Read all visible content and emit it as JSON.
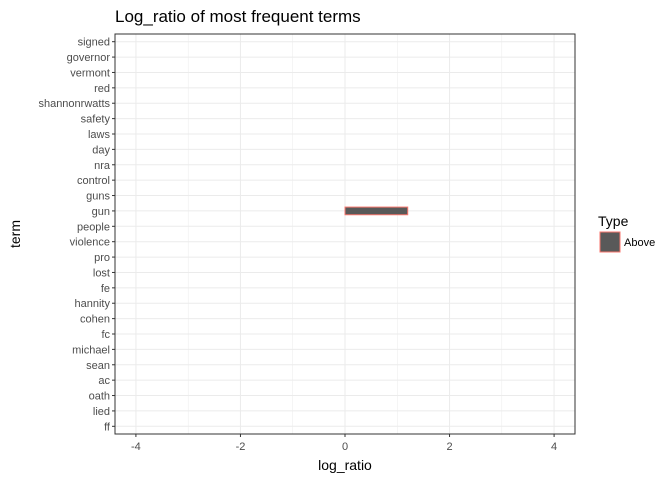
{
  "chart_data": {
    "type": "bar",
    "orientation": "horizontal",
    "title": "Log_ratio of most frequent terms",
    "xlabel": "log_ratio",
    "ylabel": "term",
    "xlim": [
      -4.4,
      4.4
    ],
    "x_ticks": [
      -4,
      -2,
      0,
      2,
      4
    ],
    "categories": [
      "signed",
      "governor",
      "vermont",
      "red",
      "shannonrwatts",
      "safety",
      "laws",
      "day",
      "nra",
      "control",
      "guns",
      "gun",
      "people",
      "violence",
      "pro",
      "lost",
      "fe",
      "hannity",
      "cohen",
      "fc",
      "michael",
      "sean",
      "ac",
      "oath",
      "lied",
      "ff"
    ],
    "series": [
      {
        "name": "Above",
        "values": [
          0,
          0,
          0,
          0,
          0,
          0,
          0,
          0,
          0,
          0,
          0,
          1.2,
          0,
          0,
          0,
          0,
          0,
          0,
          0,
          0,
          0,
          0,
          0,
          0,
          0,
          0
        ]
      }
    ],
    "legend": {
      "title": "Type",
      "position": "right",
      "entries": [
        "Above"
      ]
    },
    "grid": true,
    "colors": {
      "fill": "#595959",
      "stroke": "#f8766d",
      "grid": "#ebebeb",
      "panel_border": "#333333"
    }
  }
}
